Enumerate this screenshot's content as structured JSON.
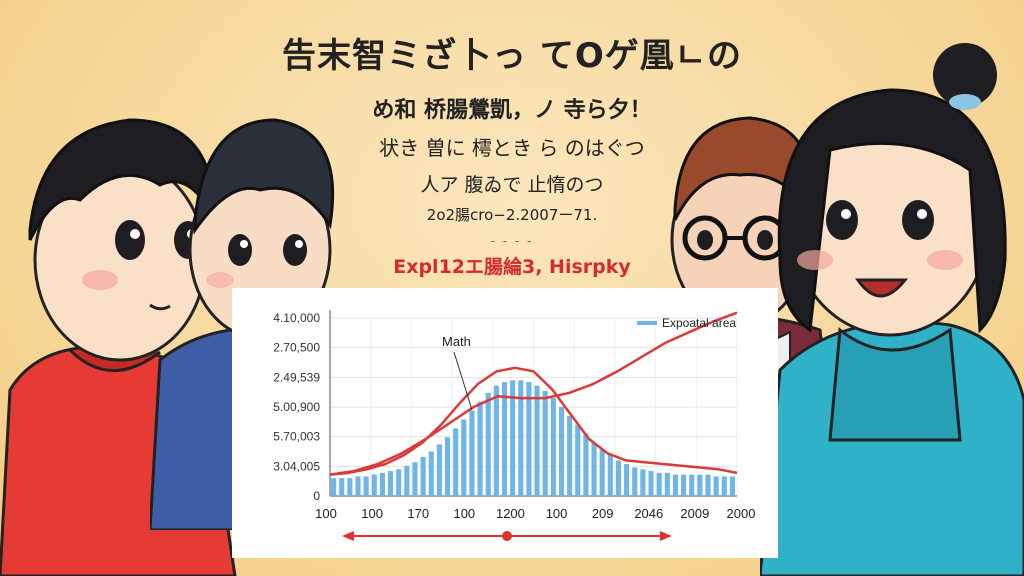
{
  "header": {
    "title": "告末智ミざ卜っ てOゲ凰ㄴの",
    "line1": "め和 桥腸鶯凱，ノ 寺ら夕！",
    "line2": "状き 曽に 樗とき ら のはぐつ",
    "line3": "人ア 腹ゐで 止惰のつ",
    "line4": "2o2腸cro−2.2007ー71.",
    "dashes": "- - - -",
    "red_title": "Expl12エ腸綸3, Hisrpky"
  },
  "chart_data": {
    "type": "bar",
    "title": "",
    "legend": {
      "label": "Expoatal area",
      "position": "top-right",
      "color": "#6fb6e6"
    },
    "annotation": "Math",
    "y_tick_labels": [
      "4.10,000",
      "2.70,500",
      "2.49,539",
      "5.00,900",
      "5.70,003",
      "3.04,005",
      "0"
    ],
    "x_tick_labels": [
      "100",
      "100",
      "170",
      "100",
      "1200",
      "100",
      "209",
      "2046",
      "2009",
      "2000"
    ],
    "ylim": [
      0,
      100
    ],
    "bars": {
      "name": "",
      "color": "#6fb6e6",
      "values": [
        10,
        10,
        10,
        11,
        11,
        12,
        13,
        14,
        15,
        17,
        19,
        22,
        25,
        29,
        33,
        38,
        43,
        48,
        53,
        58,
        62,
        64,
        65,
        65,
        64,
        62,
        59,
        55,
        50,
        45,
        40,
        35,
        30,
        26,
        23,
        20,
        18,
        16,
        15,
        14,
        13,
        13,
        12,
        12,
        12,
        12,
        12,
        11,
        11,
        11
      ]
    },
    "bell_line": {
      "color": "#d93a3a",
      "values": [
        12,
        13,
        15,
        18,
        23,
        30,
        40,
        52,
        63,
        70,
        72,
        70,
        60,
        46,
        32,
        24,
        20,
        19,
        18,
        17,
        16,
        15,
        13
      ]
    },
    "rising_line": {
      "color": "#d93a3a",
      "values": [
        12,
        14,
        18,
        24,
        32,
        41,
        50,
        56,
        55,
        55,
        58,
        63,
        70,
        78,
        86,
        92,
        98,
        103
      ]
    },
    "grid": true,
    "arrow_color": "#e03030"
  }
}
